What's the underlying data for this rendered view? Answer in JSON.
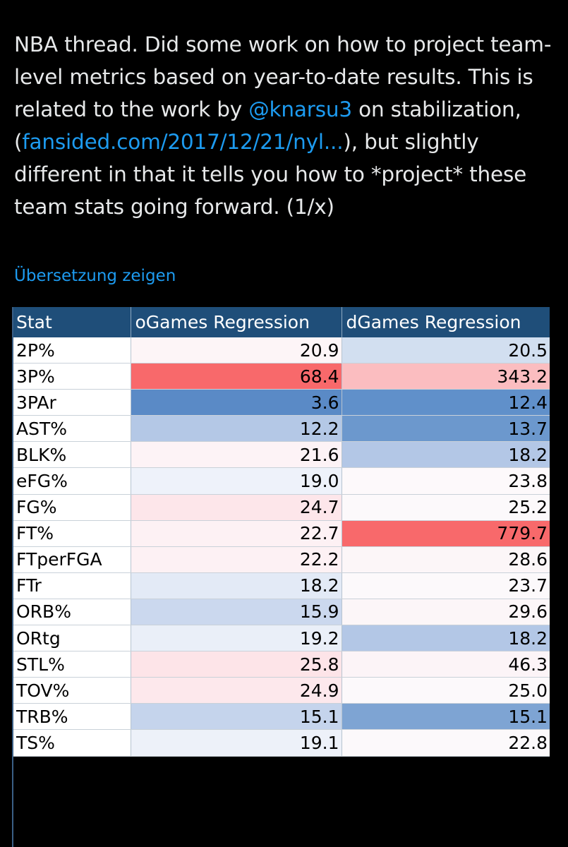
{
  "tweet": {
    "text_part1": "NBA thread. Did some work on how to project team-level metrics based on year-to-date results. This is related to the work by ",
    "mention": "@knarsu3",
    "text_part2": " on stabilization, (",
    "link": "fansided.com/2017/12/21/nyl...",
    "text_part3": "), but slightly different in that it tells you how to *project* these team stats going forward. (1/x)",
    "translate_label": "Übersetzung zeigen"
  },
  "table": {
    "headers": [
      "Stat",
      "oGames Regression",
      "dGames Regression"
    ],
    "rows": [
      {
        "stat": "2P%",
        "o": "20.9",
        "d": "20.5",
        "o_color": "#fdf5f7",
        "d_color": "#d2dff0"
      },
      {
        "stat": "3P%",
        "o": "68.4",
        "d": "343.2",
        "o_color": "#f8696b",
        "d_color": "#fbbdc0"
      },
      {
        "stat": "3PAr",
        "o": "3.6",
        "d": "12.4",
        "o_color": "#5a8ac6",
        "d_color": "#6090ca"
      },
      {
        "stat": "AST%",
        "o": "12.2",
        "d": "13.7",
        "o_color": "#b4c8e6",
        "d_color": "#6c98cd"
      },
      {
        "stat": "BLK%",
        "o": "21.6",
        "d": "18.2",
        "o_color": "#fdf3f6",
        "d_color": "#b3c7e6"
      },
      {
        "stat": "eFG%",
        "o": "19.0",
        "d": "23.8",
        "o_color": "#eef2fa",
        "d_color": "#fdf9fb"
      },
      {
        "stat": "FG%",
        "o": "24.7",
        "d": "25.2",
        "o_color": "#fde6ea",
        "d_color": "#fcf9fb"
      },
      {
        "stat": "FT%",
        "o": "22.7",
        "d": "779.7",
        "o_color": "#fdf1f4",
        "d_color": "#f8696b"
      },
      {
        "stat": "FTperFGA",
        "o": "22.2",
        "d": "28.6",
        "o_color": "#fdf1f4",
        "d_color": "#fcf6f8"
      },
      {
        "stat": "FTr",
        "o": "18.2",
        "d": "23.7",
        "o_color": "#e3eaf6",
        "d_color": "#fcf9fb"
      },
      {
        "stat": "ORB%",
        "o": "15.9",
        "d": "29.6",
        "o_color": "#cbd8ee",
        "d_color": "#fcf6f8"
      },
      {
        "stat": "ORtg",
        "o": "19.2",
        "d": "18.2",
        "o_color": "#eaeff8",
        "d_color": "#b3c7e6"
      },
      {
        "stat": "STL%",
        "o": "25.8",
        "d": "46.3",
        "o_color": "#fde4e8",
        "d_color": "#fcf4f7"
      },
      {
        "stat": "TOV%",
        "o": "24.9",
        "d": "25.0",
        "o_color": "#fde8ec",
        "d_color": "#fcf9fb"
      },
      {
        "stat": "TRB%",
        "o": "15.1",
        "d": "15.1",
        "o_color": "#c5d4ec",
        "d_color": "#7ea4d3"
      },
      {
        "stat": "TS%",
        "o": "19.1",
        "d": "22.8",
        "o_color": "#edf1f9",
        "d_color": "#fcf9fb"
      }
    ]
  }
}
